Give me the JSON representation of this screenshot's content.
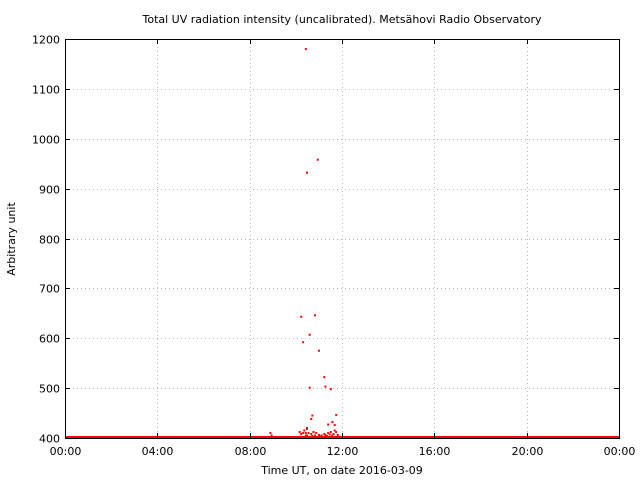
{
  "chart_data": {
    "type": "scatter",
    "title": "Total UV radiation intensity (uncalibrated). Metsähovi Radio Observatory",
    "xlabel": "Time UT, on date 2016-03-09",
    "ylabel": "Arbitrary unit",
    "xlim": [
      "00:00",
      "24:00"
    ],
    "ylim": [
      400,
      1200
    ],
    "x_ticks": [
      "00:00",
      "04:00",
      "08:00",
      "12:00",
      "16:00",
      "20:00",
      "00:00"
    ],
    "y_ticks": [
      400,
      500,
      600,
      700,
      800,
      900,
      1000,
      1100,
      1200
    ],
    "grid": true,
    "color": "#ff0000",
    "baseline": {
      "x_start": "00:00",
      "x_end": "24:00",
      "y": 400
    },
    "series": [
      {
        "x": [
          "08:54",
          "08:57",
          "10:10",
          "10:14",
          "10:19",
          "10:22",
          "10:26",
          "10:29",
          "10:33",
          "10:36",
          "10:40",
          "10:43",
          "10:46",
          "10:50",
          "10:53",
          "10:57",
          "11:00",
          "11:04",
          "11:07",
          "11:10",
          "11:14",
          "11:17",
          "11:21",
          "11:24",
          "11:28",
          "11:31",
          "11:35",
          "11:38",
          "11:41",
          "11:45",
          "11:49",
          "10:26",
          "10:29",
          "10:19",
          "10:14",
          "10:36",
          "10:50",
          "10:57",
          "10:36",
          "10:43",
          "10:40",
          "11:14",
          "11:17",
          "11:24",
          "11:31",
          "11:35",
          "11:41",
          "11:45",
          "10:29",
          "10:26",
          "10:29",
          "11:00"
        ],
        "y": [
          410,
          405,
          412,
          408,
          410,
          415,
          405,
          418,
          410,
          402,
          408,
          404,
          412,
          405,
          410,
          402,
          406,
          403,
          405,
          402,
          408,
          406,
          404,
          410,
          407,
          412,
          405,
          408,
          415,
          412,
          406,
          1180,
          932,
          592,
          643,
          607,
          646,
          958,
          501,
          445,
          438,
          522,
          503,
          427,
          498,
          432,
          426,
          446,
          420,
          410,
          405,
          575
        ]
      }
    ]
  }
}
